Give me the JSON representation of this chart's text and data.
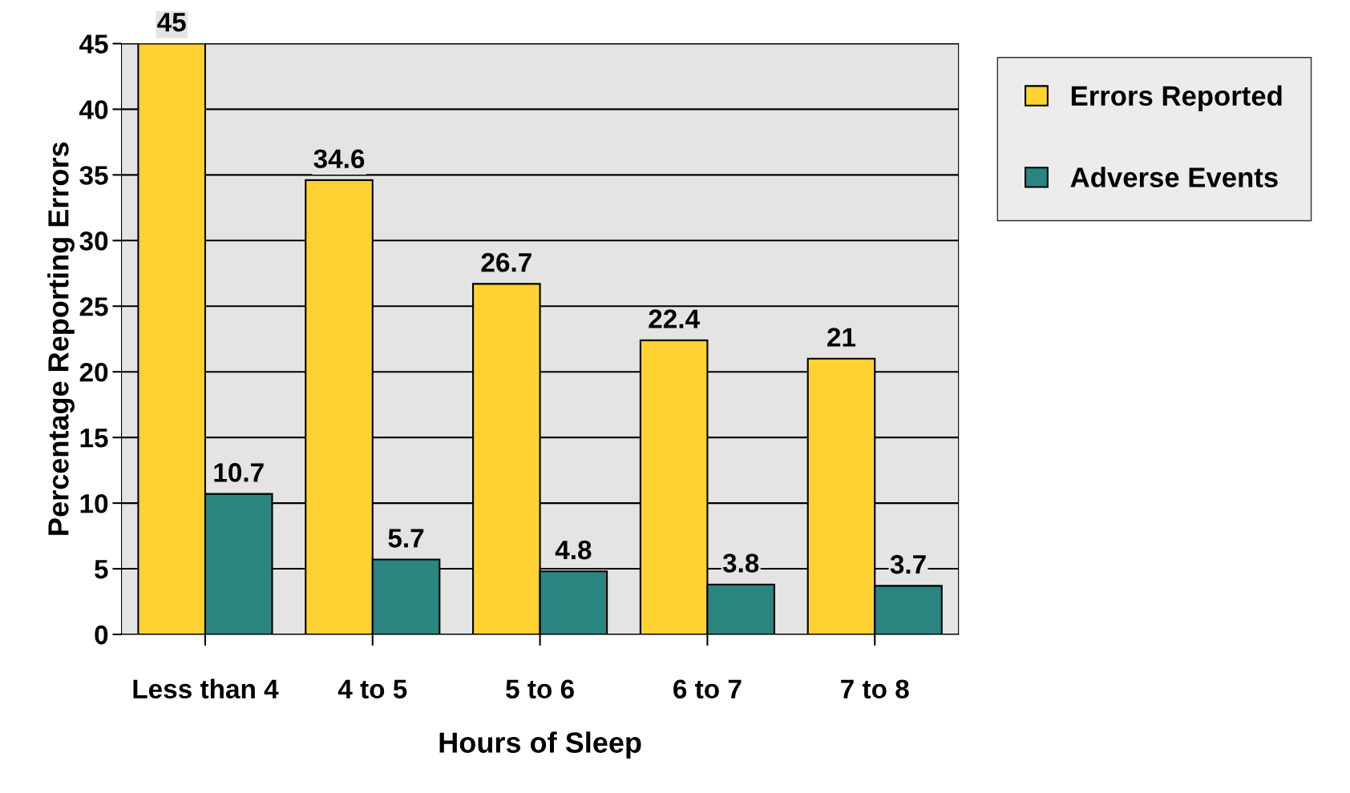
{
  "chart_data": {
    "type": "bar",
    "xlabel": "Hours of Sleep",
    "ylabel": "Percentage Reporting Errors",
    "categories": [
      "Less than 4",
      "4 to 5",
      "5 to 6",
      "6 to 7",
      "7 to 8"
    ],
    "series": [
      {
        "name": "Errors Reported",
        "color": "#fdd232",
        "values": [
          45,
          34.6,
          26.7,
          22.4,
          21
        ]
      },
      {
        "name": "Adverse Events",
        "color": "#2a8580",
        "values": [
          10.7,
          5.7,
          4.8,
          3.8,
          3.7
        ]
      }
    ],
    "ylim": [
      0,
      45
    ],
    "yticks": [
      0,
      5,
      10,
      15,
      20,
      25,
      30,
      35,
      40,
      45
    ],
    "grid": "y",
    "legend": "top right",
    "data_labels": true
  }
}
